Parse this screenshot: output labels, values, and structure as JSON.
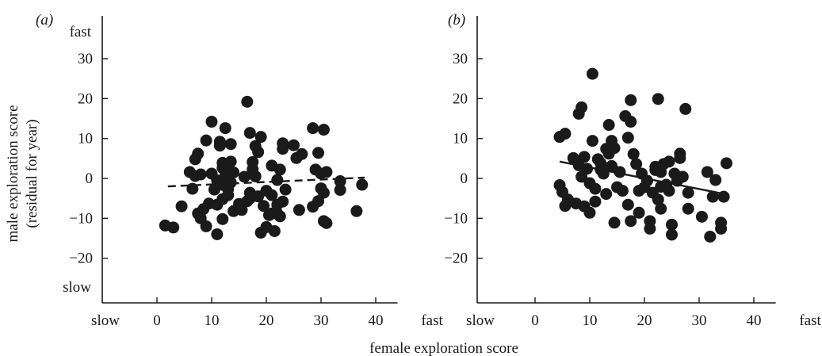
{
  "chart_data": {
    "type": "scatter",
    "shared_xlabel": "female exploration score",
    "ylabel_line1": "male exploration score",
    "ylabel_line2": "(residual for year)",
    "panels": [
      {
        "label": "(a)",
        "xlim": [
          -10,
          40
        ],
        "ylim": [
          -25,
          40
        ],
        "xticks": [
          0,
          10,
          20,
          30,
          40
        ],
        "yticks": [
          -20,
          -10,
          0,
          10,
          20,
          30
        ],
        "x_end_labels": [
          "slow",
          "fast"
        ],
        "y_end_labels": [
          "slow",
          "fast"
        ],
        "grid": false,
        "fit_line": {
          "style": "dashed",
          "x": [
            2,
            38
          ],
          "y": [
            -2,
            0.2
          ]
        },
        "points": [
          [
            1.5,
            -11.8
          ],
          [
            3,
            -12.3
          ],
          [
            4.5,
            -7
          ],
          [
            6,
            1.6
          ],
          [
            7,
            4.8
          ],
          [
            7.5,
            6.2
          ],
          [
            6.5,
            -2.6
          ],
          [
            7,
            0.6
          ],
          [
            8,
            1
          ],
          [
            7.5,
            -8.8
          ],
          [
            8,
            -10
          ],
          [
            8.5,
            -7.7
          ],
          [
            9,
            9.5
          ],
          [
            9.5,
            -6.3
          ],
          [
            9,
            -12
          ],
          [
            10,
            1.2
          ],
          [
            10,
            14.2
          ],
          [
            10.5,
            -2.8
          ],
          [
            11,
            -6.6
          ],
          [
            11,
            -0.5
          ],
          [
            11,
            -14
          ],
          [
            11.5,
            8.2
          ],
          [
            11.5,
            9.2
          ],
          [
            12,
            2.6
          ],
          [
            12,
            -1.6
          ],
          [
            12,
            3.9
          ],
          [
            12,
            -5.2
          ],
          [
            12,
            -10.2
          ],
          [
            12.5,
            0.6
          ],
          [
            12.5,
            12.6
          ],
          [
            13,
            2.2
          ],
          [
            13,
            -4.2
          ],
          [
            13,
            -2.7
          ],
          [
            13.5,
            8.6
          ],
          [
            13.5,
            4.2
          ],
          [
            13.5,
            -1
          ],
          [
            14,
            1.5
          ],
          [
            14,
            -8.2
          ],
          [
            15,
            -6.4
          ],
          [
            15.5,
            -7.9
          ],
          [
            16,
            0.4
          ],
          [
            16.5,
            19.2
          ],
          [
            16.5,
            -5.7
          ],
          [
            17,
            11.4
          ],
          [
            17,
            -3.6
          ],
          [
            17,
            -5
          ],
          [
            17.5,
            2.3
          ],
          [
            17.5,
            4.1
          ],
          [
            18,
            8.1
          ],
          [
            18,
            0.5
          ],
          [
            18.5,
            6.6
          ],
          [
            18.5,
            -4.5
          ],
          [
            19,
            10.4
          ],
          [
            19,
            -13.6
          ],
          [
            19.5,
            -6.9
          ],
          [
            20,
            -12.2
          ],
          [
            20,
            -3.1
          ],
          [
            20.5,
            -9.2
          ],
          [
            21,
            3.2
          ],
          [
            21,
            -4.2
          ],
          [
            21,
            -8.8
          ],
          [
            21.5,
            -13.2
          ],
          [
            22,
            -0.4
          ],
          [
            22,
            -6.6
          ],
          [
            22,
            -8.8
          ],
          [
            22.5,
            2.2
          ],
          [
            22.5,
            -9.5
          ],
          [
            23,
            8.8
          ],
          [
            23,
            7.4
          ],
          [
            23,
            -5.8
          ],
          [
            23.5,
            -2.8
          ],
          [
            25,
            8.3
          ],
          [
            25.5,
            5.1
          ],
          [
            26,
            -7.9
          ],
          [
            26.5,
            6.1
          ],
          [
            28.5,
            12.6
          ],
          [
            28.5,
            -7.1
          ],
          [
            29,
            2.2
          ],
          [
            29.5,
            6.4
          ],
          [
            29.5,
            -5.7
          ],
          [
            30,
            1.2
          ],
          [
            30,
            -2.5
          ],
          [
            30.5,
            12.2
          ],
          [
            30.5,
            -10.7
          ],
          [
            31,
            -11.2
          ],
          [
            31,
            1.6
          ],
          [
            30.5,
            -3.6
          ],
          [
            33.5,
            -0.7
          ],
          [
            33.5,
            -2.9
          ],
          [
            36.5,
            -8.2
          ],
          [
            37.5,
            -1.6
          ]
        ]
      },
      {
        "label": "(b)",
        "xlim": [
          -10,
          40
        ],
        "ylim": [
          -25,
          40
        ],
        "xticks": [
          0,
          10,
          20,
          30,
          40
        ],
        "yticks": [
          -20,
          -10,
          0,
          10,
          20,
          30
        ],
        "x_end_labels": [
          "slow",
          "fast"
        ],
        "grid": false,
        "fit_line": {
          "style": "solid",
          "x": [
            4.5,
            35
          ],
          "y": [
            4.2,
            -4
          ]
        },
        "points": [
          [
            4.5,
            10.4
          ],
          [
            5.5,
            11.2
          ],
          [
            4.5,
            -1.7
          ],
          [
            5,
            -3.4
          ],
          [
            5.5,
            -6.9
          ],
          [
            6,
            -5.3
          ],
          [
            7,
            5.1
          ],
          [
            7.5,
            -6.3
          ],
          [
            8,
            3.3
          ],
          [
            8,
            16.2
          ],
          [
            8.5,
            17.8
          ],
          [
            8.5,
            0.4
          ],
          [
            9,
            5.4
          ],
          [
            9,
            -7
          ],
          [
            9.5,
            2.4
          ],
          [
            10,
            -1.2
          ],
          [
            10.5,
            9.4
          ],
          [
            10,
            -8.6
          ],
          [
            10.5,
            26.2
          ],
          [
            11,
            -2.6
          ],
          [
            11,
            -5.8
          ],
          [
            11.5,
            4.8
          ],
          [
            12,
            2.2
          ],
          [
            12,
            3.8
          ],
          [
            12.5,
            1.2
          ],
          [
            13,
            7.4
          ],
          [
            13,
            -3.9
          ],
          [
            13.5,
            13.4
          ],
          [
            13.5,
            6.2
          ],
          [
            14,
            9.4
          ],
          [
            14,
            3.1
          ],
          [
            14.5,
            -11.1
          ],
          [
            14.5,
            7.6
          ],
          [
            15,
            -2.2
          ],
          [
            15.5,
            1.6
          ],
          [
            16,
            -3.1
          ],
          [
            16.5,
            15.6
          ],
          [
            17,
            10.2
          ],
          [
            17,
            -6.6
          ],
          [
            17.5,
            19.6
          ],
          [
            17.5,
            14.2
          ],
          [
            17.5,
            -10.7
          ],
          [
            18,
            6.1
          ],
          [
            18.5,
            3.6
          ],
          [
            19,
            -3.1
          ],
          [
            19,
            -8.6
          ],
          [
            19.5,
            1.2
          ],
          [
            20,
            -2.2
          ],
          [
            20.5,
            -0.6
          ],
          [
            21,
            -10.7
          ],
          [
            21,
            -12.6
          ],
          [
            21.5,
            -3.6
          ],
          [
            22,
            2.9
          ],
          [
            22.5,
            19.9
          ],
          [
            22.5,
            -5.3
          ],
          [
            22,
            2.1
          ],
          [
            23,
            1.6
          ],
          [
            23,
            -7.6
          ],
          [
            23,
            -2.1
          ],
          [
            23.5,
            3.6
          ],
          [
            24,
            -1.6
          ],
          [
            24.5,
            4.2
          ],
          [
            24.5,
            -3.1
          ],
          [
            25,
            -11.6
          ],
          [
            25,
            -14.1
          ],
          [
            25.5,
            1.2
          ],
          [
            26,
            -0.6
          ],
          [
            26.5,
            6.2
          ],
          [
            26.5,
            5.1
          ],
          [
            27,
            0.4
          ],
          [
            27.5,
            17.4
          ],
          [
            28,
            -3.6
          ],
          [
            28,
            -7.6
          ],
          [
            30.5,
            -9.6
          ],
          [
            31.5,
            1.6
          ],
          [
            32,
            -14.6
          ],
          [
            32.5,
            -4.6
          ],
          [
            33,
            -0.4
          ],
          [
            34,
            -11.1
          ],
          [
            34,
            -12.6
          ],
          [
            34.5,
            -4.6
          ],
          [
            35,
            3.8
          ]
        ]
      }
    ]
  }
}
